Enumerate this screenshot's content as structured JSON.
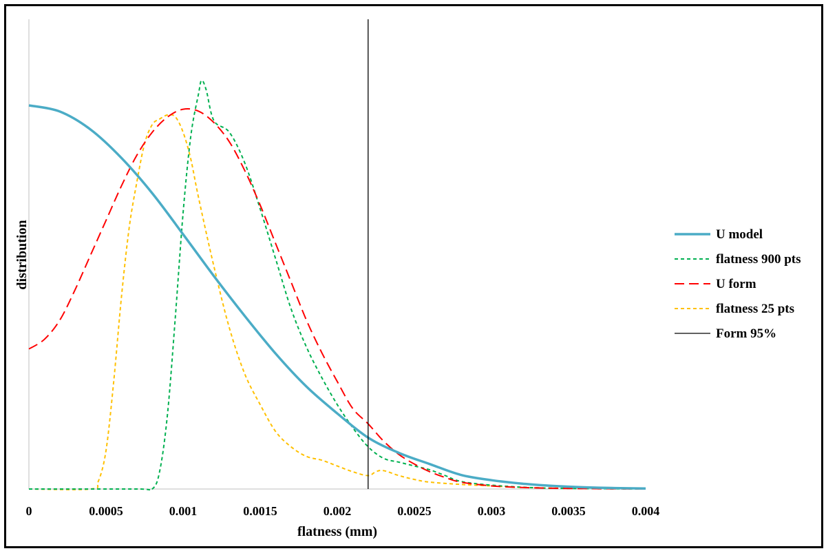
{
  "chart_data": {
    "type": "line",
    "xlabel": "flatness (mm)",
    "ylabel": "distribution",
    "xlim": [
      0,
      0.004
    ],
    "ylim": [
      0,
      1.1
    ],
    "x_ticks": [
      "0",
      "0.0005",
      "0.001",
      "0.0015",
      "0.002",
      "0.0025",
      "0.003",
      "0.0035",
      "0.004"
    ],
    "grid": false,
    "legend_position": "right",
    "series": [
      {
        "name": "U model",
        "style": "solid-thick",
        "color": "#4bacc6",
        "x": [
          0,
          0.0002,
          0.0004,
          0.0006,
          0.0008,
          0.001,
          0.0012,
          0.0014,
          0.0016,
          0.0018,
          0.002,
          0.0022,
          0.0024,
          0.0026,
          0.0028,
          0.003,
          0.0032,
          0.0034,
          0.0036,
          0.0038,
          0.004
        ],
        "y": [
          1.0,
          0.984,
          0.937,
          0.863,
          0.771,
          0.664,
          0.555,
          0.451,
          0.353,
          0.267,
          0.197,
          0.134,
          0.094,
          0.065,
          0.037,
          0.023,
          0.014,
          0.008,
          0.0045,
          0.0025,
          0.0015
        ]
      },
      {
        "name": "flatness 900 pts",
        "style": "dash-short",
        "color": "#00b050",
        "x": [
          0,
          0.0007,
          0.0008,
          0.00085,
          0.0009,
          0.00095,
          0.001,
          0.00105,
          0.0011,
          0.00112,
          0.00115,
          0.0012,
          0.0013,
          0.0014,
          0.0015,
          0.0016,
          0.0017,
          0.0018,
          0.0019,
          0.002,
          0.0021,
          0.0022,
          0.0023,
          0.0024,
          0.0025,
          0.0026,
          0.0027,
          0.0028,
          0.003,
          0.0033,
          0.0036,
          0.004
        ],
        "y": [
          0,
          0,
          0,
          0.05,
          0.2,
          0.45,
          0.72,
          0.92,
          1.03,
          1.065,
          1.04,
          0.96,
          0.93,
          0.85,
          0.73,
          0.6,
          0.47,
          0.37,
          0.29,
          0.22,
          0.16,
          0.11,
          0.08,
          0.07,
          0.06,
          0.05,
          0.035,
          0.02,
          0.01,
          0.003,
          0.001,
          0
        ]
      },
      {
        "name": "U form",
        "style": "dash-long",
        "color": "#ff0000",
        "x": [
          0,
          0.0001,
          0.0002,
          0.0003,
          0.0004,
          0.0005,
          0.0006,
          0.0007,
          0.0008,
          0.0009,
          0.001,
          0.0011,
          0.0012,
          0.0013,
          0.0014,
          0.0015,
          0.0016,
          0.0017,
          0.0018,
          0.0019,
          0.002,
          0.0021,
          0.0022,
          0.0023,
          0.0024,
          0.0025,
          0.0026,
          0.0027,
          0.0028,
          0.003,
          0.0032,
          0.0034,
          0.0036,
          0.004
        ],
        "y": [
          0.365,
          0.39,
          0.44,
          0.52,
          0.61,
          0.7,
          0.79,
          0.87,
          0.93,
          0.97,
          0.99,
          0.985,
          0.955,
          0.905,
          0.83,
          0.74,
          0.64,
          0.54,
          0.44,
          0.355,
          0.28,
          0.21,
          0.17,
          0.125,
          0.09,
          0.065,
          0.045,
          0.03,
          0.018,
          0.008,
          0.004,
          0.002,
          0.001,
          0
        ]
      },
      {
        "name": "flatness 25 pts",
        "style": "dash-short",
        "color": "#ffc000",
        "x": [
          0,
          0.0004,
          0.00045,
          0.0005,
          0.00055,
          0.0006,
          0.00065,
          0.0007,
          0.00075,
          0.0008,
          0.00085,
          0.0009,
          0.00095,
          0.001,
          0.00105,
          0.0011,
          0.0012,
          0.0013,
          0.0014,
          0.0015,
          0.0016,
          0.0017,
          0.0018,
          0.0019,
          0.002,
          0.0021,
          0.0022,
          0.00225,
          0.0023,
          0.0024,
          0.0025,
          0.0026,
          0.0028,
          0.003,
          0.0033,
          0.004
        ],
        "y": [
          0,
          0,
          0.02,
          0.1,
          0.28,
          0.5,
          0.68,
          0.8,
          0.9,
          0.95,
          0.965,
          0.975,
          0.97,
          0.93,
          0.86,
          0.76,
          0.58,
          0.42,
          0.3,
          0.22,
          0.15,
          0.11,
          0.085,
          0.075,
          0.06,
          0.045,
          0.035,
          0.045,
          0.048,
          0.035,
          0.025,
          0.018,
          0.012,
          0.008,
          0.003,
          0
        ]
      }
    ],
    "reference_lines": [
      {
        "name": "Form 95%",
        "x": 0.0022,
        "color": "#000000",
        "style": "solid-thin"
      }
    ]
  }
}
